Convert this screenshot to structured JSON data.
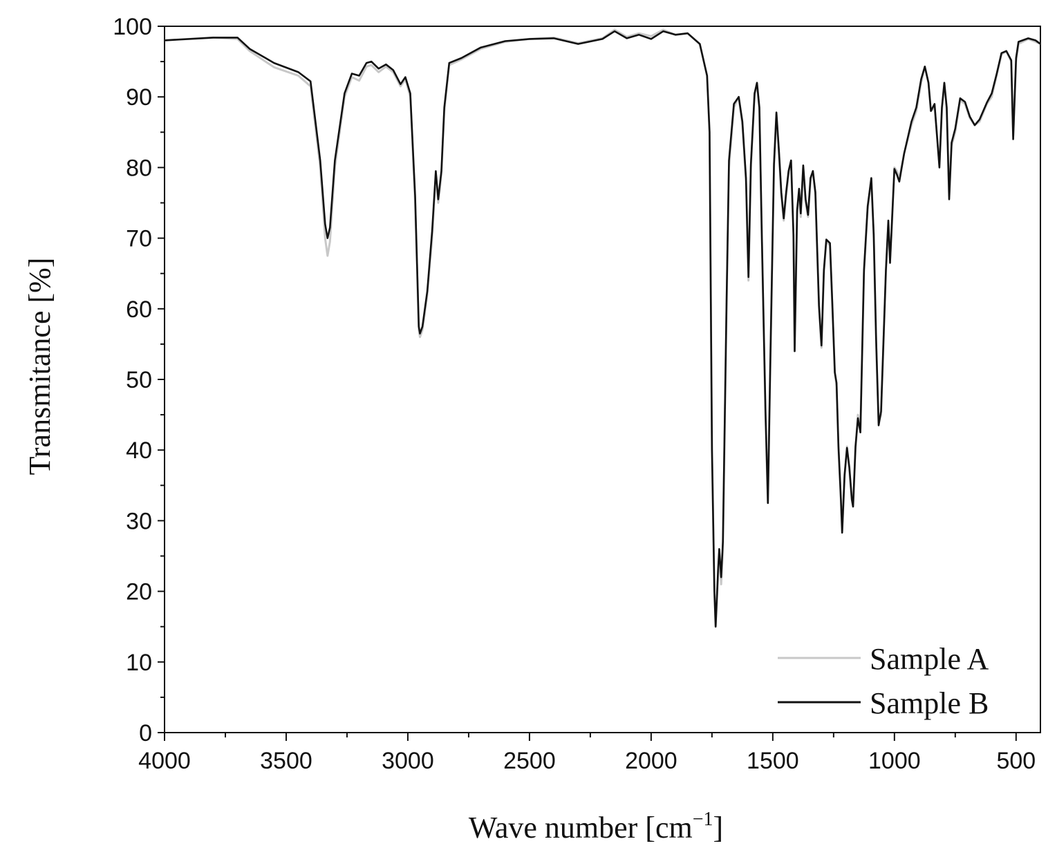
{
  "chart_data": {
    "type": "line",
    "xlabel": "Wave number [cm",
    "xlabel_sup": "−1",
    "xlabel_end": "]",
    "ylabel": "Transmitance [%]",
    "xlim": [
      4000,
      400
    ],
    "ylim": [
      0,
      100
    ],
    "x_ticks": [
      "4000",
      "3500",
      "3000",
      "2500",
      "2000",
      "1500",
      "1000",
      "500"
    ],
    "y_ticks": [
      "0",
      "10",
      "20",
      "30",
      "40",
      "50",
      "60",
      "70",
      "80",
      "90",
      "100"
    ],
    "grid": false,
    "legend_position": "bottom-right",
    "series": [
      {
        "name": "Sample A",
        "color": "#c8c8c8",
        "points": [
          [
            4000,
            98
          ],
          [
            3800,
            98.4
          ],
          [
            3700,
            98.2
          ],
          [
            3650,
            96.5
          ],
          [
            3550,
            94.2
          ],
          [
            3450,
            93
          ],
          [
            3400,
            91.5
          ],
          [
            3360,
            80
          ],
          [
            3340,
            70
          ],
          [
            3330,
            67.5
          ],
          [
            3320,
            69.5
          ],
          [
            3300,
            80
          ],
          [
            3260,
            90
          ],
          [
            3230,
            92.8
          ],
          [
            3200,
            92.3
          ],
          [
            3170,
            94.3
          ],
          [
            3150,
            94.5
          ],
          [
            3120,
            93.5
          ],
          [
            3090,
            94.3
          ],
          [
            3060,
            93.5
          ],
          [
            3030,
            91.5
          ],
          [
            3010,
            92.5
          ],
          [
            2990,
            90
          ],
          [
            2970,
            75
          ],
          [
            2955,
            57
          ],
          [
            2950,
            56
          ],
          [
            2940,
            57
          ],
          [
            2920,
            62
          ],
          [
            2900,
            70
          ],
          [
            2885,
            79
          ],
          [
            2875,
            75
          ],
          [
            2862,
            79
          ],
          [
            2850,
            88
          ],
          [
            2830,
            94.5
          ],
          [
            2780,
            95.3
          ],
          [
            2700,
            96.8
          ],
          [
            2600,
            97.8
          ],
          [
            2500,
            98.2
          ],
          [
            2400,
            98.4
          ],
          [
            2300,
            97.6
          ],
          [
            2200,
            98.3
          ],
          [
            2150,
            99.5
          ],
          [
            2100,
            98.5
          ],
          [
            2050,
            99
          ],
          [
            2000,
            98.6
          ],
          [
            1950,
            99.5
          ],
          [
            1900,
            98.8
          ],
          [
            1850,
            99
          ],
          [
            1800,
            97.5
          ],
          [
            1770,
            93
          ],
          [
            1760,
            85
          ],
          [
            1750,
            40
          ],
          [
            1740,
            20
          ],
          [
            1735,
            15
          ],
          [
            1725,
            22
          ],
          [
            1720,
            25.5
          ],
          [
            1712,
            21
          ],
          [
            1705,
            26
          ],
          [
            1690,
            60
          ],
          [
            1680,
            80
          ],
          [
            1660,
            88.5
          ],
          [
            1640,
            90
          ],
          [
            1625,
            86
          ],
          [
            1610,
            78
          ],
          [
            1600,
            64
          ],
          [
            1590,
            80
          ],
          [
            1575,
            90
          ],
          [
            1565,
            92
          ],
          [
            1555,
            88
          ],
          [
            1545,
            70
          ],
          [
            1530,
            45
          ],
          [
            1520,
            32.5
          ],
          [
            1510,
            52
          ],
          [
            1495,
            80
          ],
          [
            1485,
            87.5
          ],
          [
            1475,
            82
          ],
          [
            1465,
            76
          ],
          [
            1455,
            72.5
          ],
          [
            1445,
            76
          ],
          [
            1435,
            79
          ],
          [
            1425,
            81
          ],
          [
            1415,
            70
          ],
          [
            1410,
            54
          ],
          [
            1400,
            73.5
          ],
          [
            1392,
            76.5
          ],
          [
            1385,
            73
          ],
          [
            1375,
            80
          ],
          [
            1365,
            75
          ],
          [
            1355,
            73
          ],
          [
            1345,
            78
          ],
          [
            1335,
            79.5
          ],
          [
            1325,
            76
          ],
          [
            1310,
            60
          ],
          [
            1300,
            54.5
          ],
          [
            1290,
            65
          ],
          [
            1280,
            69.5
          ],
          [
            1265,
            69
          ],
          [
            1255,
            60
          ],
          [
            1245,
            51
          ],
          [
            1238,
            49
          ],
          [
            1230,
            40
          ],
          [
            1220,
            33
          ],
          [
            1215,
            28.5
          ],
          [
            1205,
            36
          ],
          [
            1195,
            40.5
          ],
          [
            1185,
            37
          ],
          [
            1175,
            33
          ],
          [
            1170,
            32
          ],
          [
            1160,
            40
          ],
          [
            1150,
            45
          ],
          [
            1140,
            43
          ],
          [
            1125,
            65
          ],
          [
            1110,
            74
          ],
          [
            1095,
            78.5
          ],
          [
            1085,
            70
          ],
          [
            1075,
            55
          ],
          [
            1065,
            44
          ],
          [
            1055,
            45
          ],
          [
            1045,
            55
          ],
          [
            1035,
            65
          ],
          [
            1025,
            72
          ],
          [
            1018,
            67
          ],
          [
            1010,
            72
          ],
          [
            1000,
            80
          ],
          [
            990,
            79.5
          ],
          [
            980,
            78.5
          ],
          [
            960,
            82
          ],
          [
            930,
            86
          ],
          [
            910,
            88
          ],
          [
            890,
            92
          ],
          [
            875,
            94.3
          ],
          [
            860,
            92
          ],
          [
            850,
            88
          ],
          [
            835,
            88.5
          ],
          [
            815,
            80.5
          ],
          [
            805,
            88
          ],
          [
            795,
            92
          ],
          [
            785,
            88
          ],
          [
            775,
            76
          ],
          [
            765,
            83
          ],
          [
            750,
            85
          ],
          [
            730,
            89.5
          ],
          [
            710,
            89
          ],
          [
            690,
            87
          ],
          [
            670,
            86
          ],
          [
            650,
            86.5
          ],
          [
            620,
            89
          ],
          [
            600,
            90
          ],
          [
            580,
            93
          ],
          [
            560,
            96
          ],
          [
            540,
            96.5
          ],
          [
            520,
            95
          ],
          [
            512,
            84.5
          ],
          [
            500,
            95
          ],
          [
            490,
            97.5
          ],
          [
            450,
            98.2
          ],
          [
            420,
            97.8
          ],
          [
            400,
            97.5
          ]
        ]
      },
      {
        "name": "Sample B",
        "color": "#111111",
        "points": [
          [
            4000,
            98
          ],
          [
            3800,
            98.4
          ],
          [
            3700,
            98.4
          ],
          [
            3650,
            96.8
          ],
          [
            3550,
            94.8
          ],
          [
            3450,
            93.5
          ],
          [
            3400,
            92.2
          ],
          [
            3360,
            81
          ],
          [
            3340,
            72
          ],
          [
            3330,
            70
          ],
          [
            3320,
            71.5
          ],
          [
            3300,
            81
          ],
          [
            3260,
            90.5
          ],
          [
            3230,
            93.3
          ],
          [
            3200,
            93
          ],
          [
            3170,
            94.8
          ],
          [
            3150,
            95
          ],
          [
            3120,
            94
          ],
          [
            3090,
            94.6
          ],
          [
            3060,
            93.8
          ],
          [
            3030,
            91.8
          ],
          [
            3010,
            92.8
          ],
          [
            2990,
            90.5
          ],
          [
            2970,
            76
          ],
          [
            2955,
            57.5
          ],
          [
            2950,
            56.5
          ],
          [
            2940,
            57.5
          ],
          [
            2920,
            62.5
          ],
          [
            2900,
            71
          ],
          [
            2885,
            79.5
          ],
          [
            2875,
            75.5
          ],
          [
            2862,
            79.5
          ],
          [
            2850,
            88.5
          ],
          [
            2830,
            94.8
          ],
          [
            2780,
            95.5
          ],
          [
            2700,
            97
          ],
          [
            2600,
            97.9
          ],
          [
            2500,
            98.2
          ],
          [
            2400,
            98.3
          ],
          [
            2300,
            97.5
          ],
          [
            2200,
            98.2
          ],
          [
            2150,
            99.3
          ],
          [
            2100,
            98.3
          ],
          [
            2050,
            98.8
          ],
          [
            2000,
            98.2
          ],
          [
            1950,
            99.3
          ],
          [
            1900,
            98.8
          ],
          [
            1850,
            99
          ],
          [
            1800,
            97.5
          ],
          [
            1770,
            93
          ],
          [
            1760,
            85
          ],
          [
            1750,
            40
          ],
          [
            1740,
            20
          ],
          [
            1735,
            15
          ],
          [
            1725,
            23
          ],
          [
            1720,
            26
          ],
          [
            1712,
            22
          ],
          [
            1705,
            27
          ],
          [
            1690,
            61
          ],
          [
            1680,
            81
          ],
          [
            1660,
            89
          ],
          [
            1640,
            90
          ],
          [
            1625,
            86.5
          ],
          [
            1610,
            78.5
          ],
          [
            1600,
            64.5
          ],
          [
            1590,
            80.5
          ],
          [
            1575,
            90.5
          ],
          [
            1565,
            92
          ],
          [
            1555,
            88.5
          ],
          [
            1545,
            70.5
          ],
          [
            1530,
            45.5
          ],
          [
            1520,
            32.5
          ],
          [
            1510,
            52.5
          ],
          [
            1495,
            80.5
          ],
          [
            1485,
            87.8
          ],
          [
            1475,
            82.5
          ],
          [
            1465,
            76.5
          ],
          [
            1455,
            72.8
          ],
          [
            1445,
            76.5
          ],
          [
            1435,
            79.5
          ],
          [
            1425,
            81
          ],
          [
            1415,
            70.5
          ],
          [
            1410,
            54
          ],
          [
            1400,
            74
          ],
          [
            1392,
            77
          ],
          [
            1385,
            73.5
          ],
          [
            1375,
            80.3
          ],
          [
            1365,
            75.5
          ],
          [
            1355,
            73.3
          ],
          [
            1345,
            78.5
          ],
          [
            1335,
            79.5
          ],
          [
            1325,
            76.5
          ],
          [
            1310,
            60.5
          ],
          [
            1300,
            54.8
          ],
          [
            1290,
            65.5
          ],
          [
            1280,
            69.8
          ],
          [
            1265,
            69.3
          ],
          [
            1255,
            60.5
          ],
          [
            1245,
            51
          ],
          [
            1238,
            49.5
          ],
          [
            1230,
            40.5
          ],
          [
            1220,
            33
          ],
          [
            1215,
            28.3
          ],
          [
            1205,
            36.5
          ],
          [
            1195,
            40.3
          ],
          [
            1185,
            37.5
          ],
          [
            1175,
            33
          ],
          [
            1170,
            32
          ],
          [
            1160,
            40.5
          ],
          [
            1150,
            44.5
          ],
          [
            1140,
            42.5
          ],
          [
            1125,
            65.5
          ],
          [
            1110,
            74.5
          ],
          [
            1095,
            78.5
          ],
          [
            1085,
            70.5
          ],
          [
            1075,
            55.5
          ],
          [
            1065,
            43.5
          ],
          [
            1055,
            45.5
          ],
          [
            1045,
            55.5
          ],
          [
            1035,
            65.5
          ],
          [
            1025,
            72.5
          ],
          [
            1018,
            66.5
          ],
          [
            1010,
            72.5
          ],
          [
            1000,
            79.8
          ],
          [
            990,
            79
          ],
          [
            980,
            78
          ],
          [
            960,
            82
          ],
          [
            930,
            86.5
          ],
          [
            910,
            88.5
          ],
          [
            890,
            92.5
          ],
          [
            875,
            94.3
          ],
          [
            860,
            92
          ],
          [
            850,
            88
          ],
          [
            835,
            89
          ],
          [
            815,
            80
          ],
          [
            805,
            88.5
          ],
          [
            795,
            92
          ],
          [
            785,
            88.5
          ],
          [
            775,
            75.5
          ],
          [
            765,
            83.5
          ],
          [
            750,
            85.5
          ],
          [
            730,
            89.8
          ],
          [
            710,
            89.3
          ],
          [
            690,
            87.2
          ],
          [
            670,
            86
          ],
          [
            650,
            86.8
          ],
          [
            620,
            89.2
          ],
          [
            600,
            90.5
          ],
          [
            580,
            93.2
          ],
          [
            560,
            96.2
          ],
          [
            540,
            96.5
          ],
          [
            520,
            95.2
          ],
          [
            512,
            84
          ],
          [
            500,
            95.5
          ],
          [
            490,
            97.8
          ],
          [
            450,
            98.3
          ],
          [
            420,
            98
          ],
          [
            400,
            97.5
          ]
        ]
      }
    ]
  }
}
